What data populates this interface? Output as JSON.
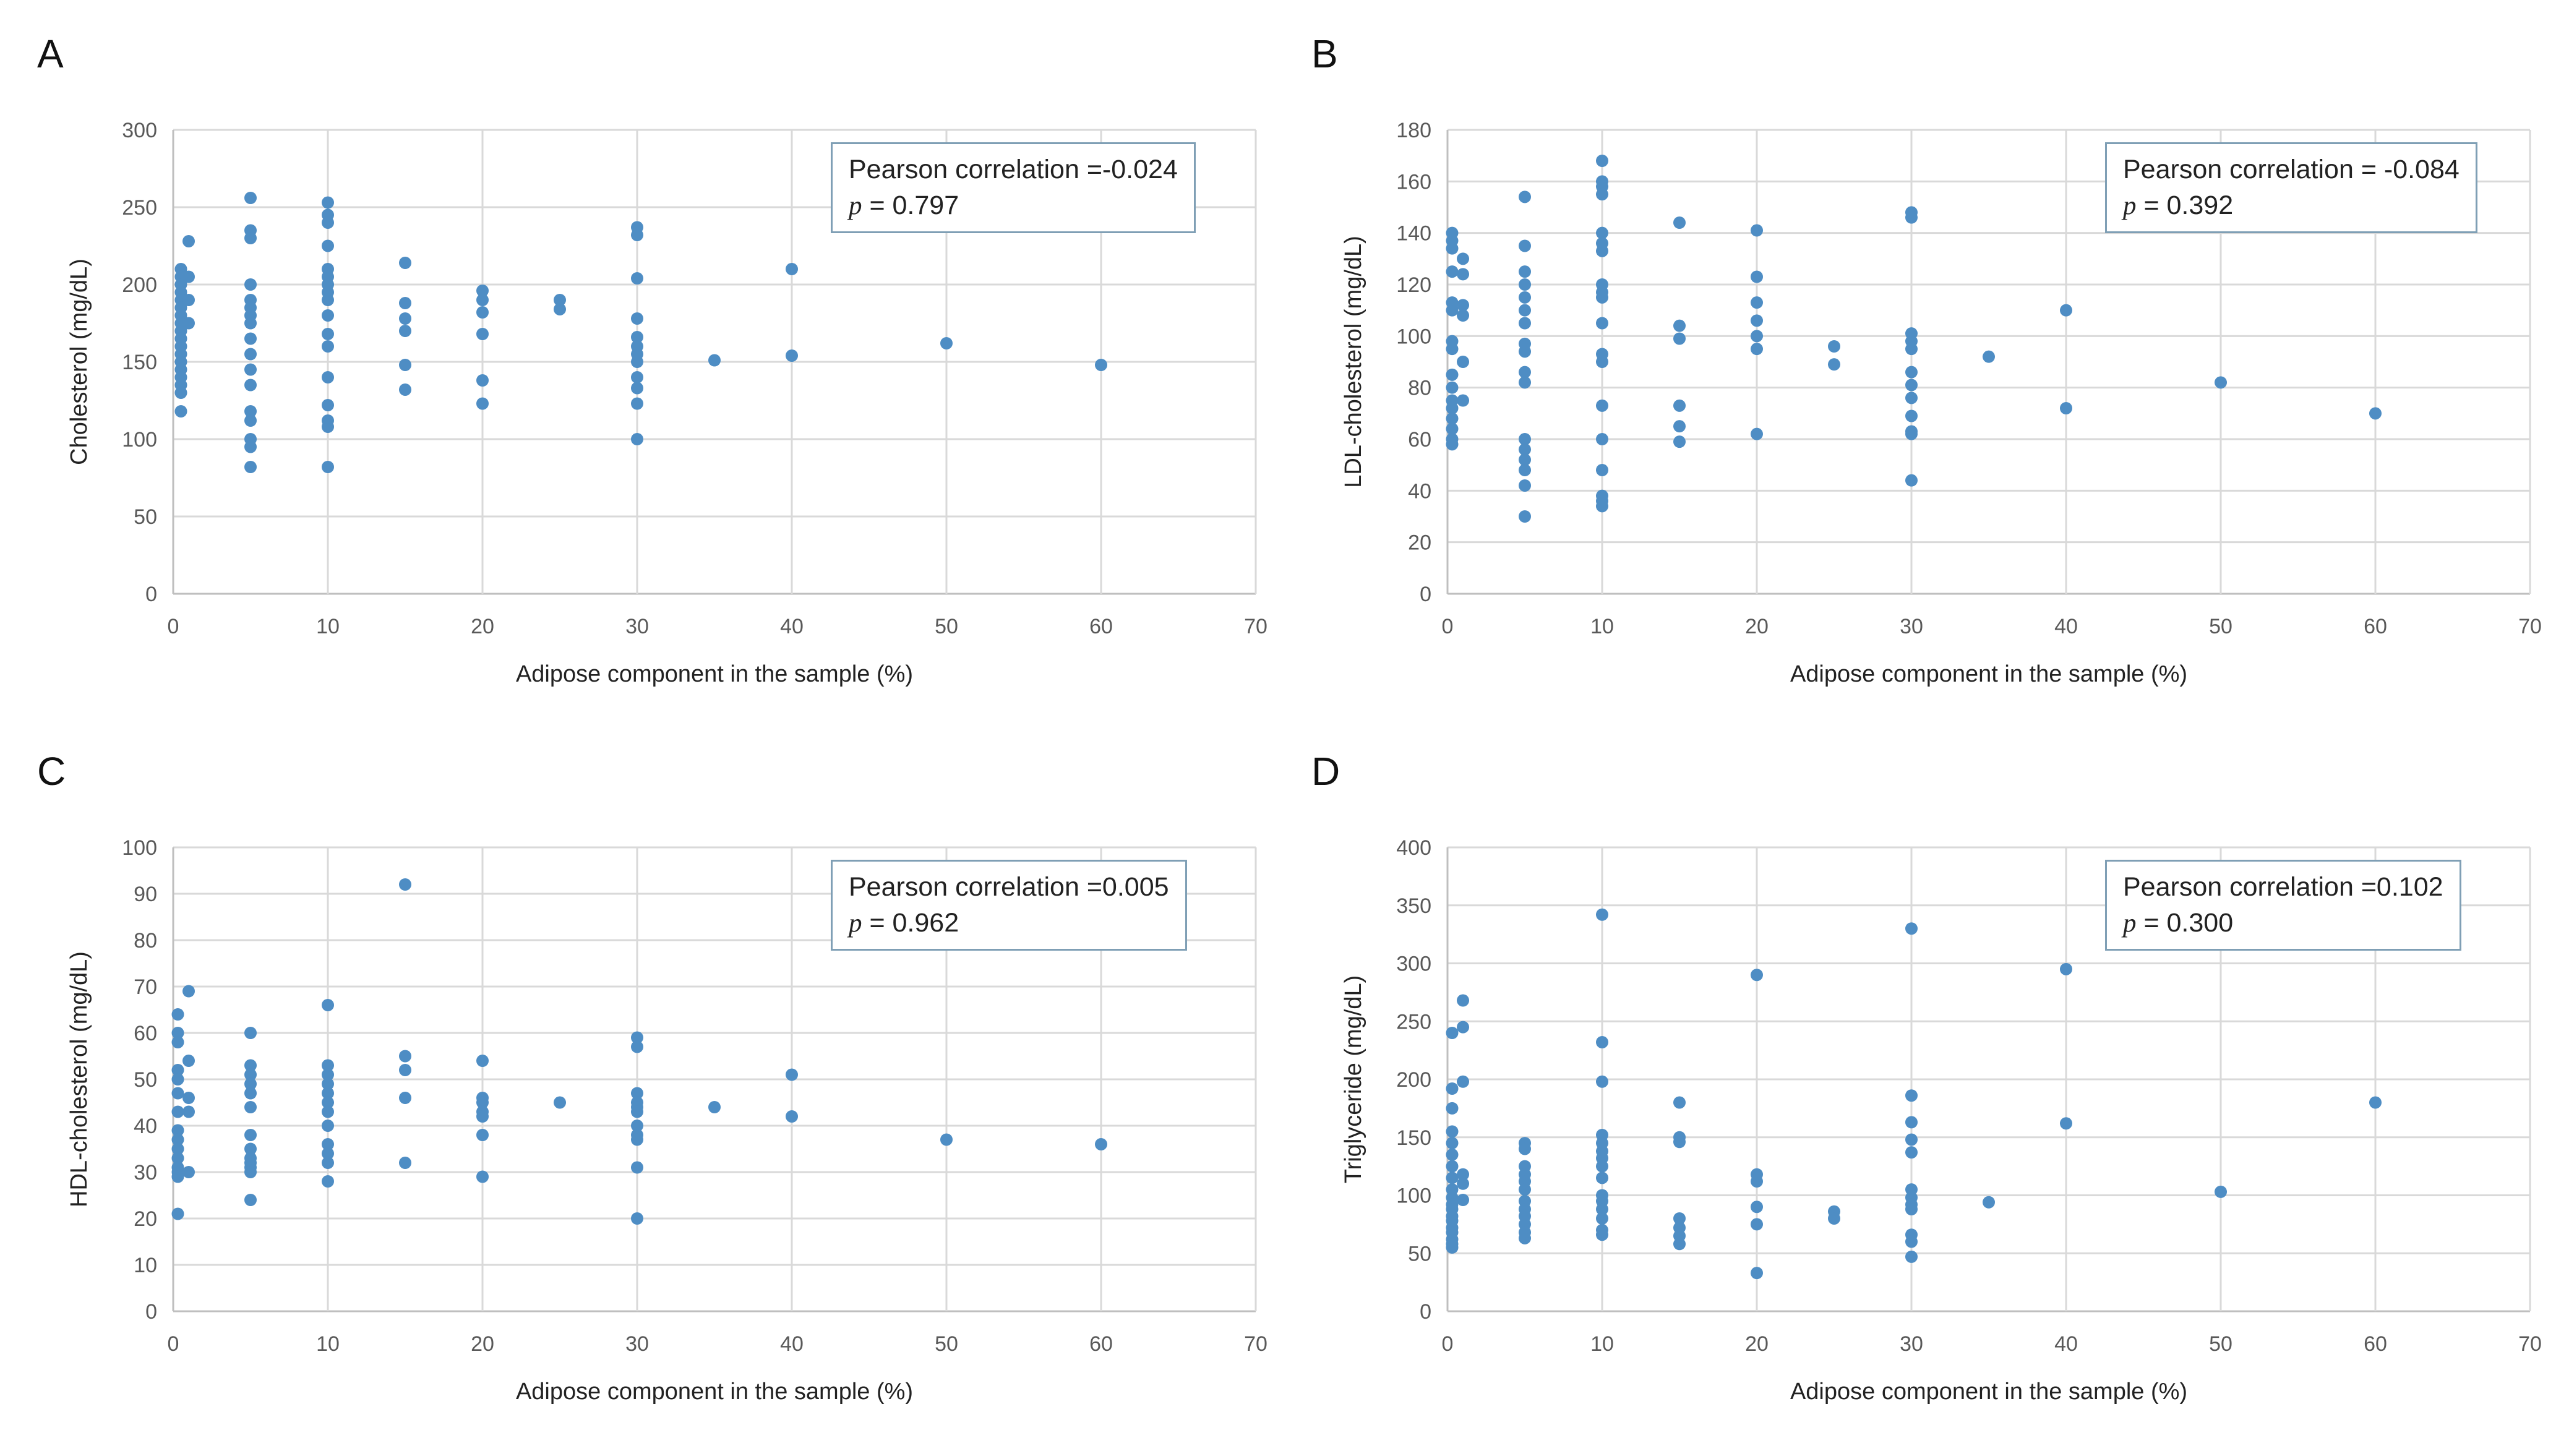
{
  "chart_data": [
    {
      "panel": "A",
      "type": "scatter",
      "xlabel": "Adipose component in the sample (%)",
      "ylabel": "Cholesterol (mg/dL)",
      "xlim": [
        0,
        70
      ],
      "xticks": [
        0,
        10,
        20,
        30,
        40,
        50,
        60,
        70
      ],
      "ylim": [
        0,
        300
      ],
      "yticks": [
        0,
        50,
        100,
        150,
        200,
        250,
        300
      ],
      "annotation": {
        "corr": "Pearson correlation =-0.024",
        "p_symbol": "p",
        "p_value": " = 0.797"
      },
      "points": [
        [
          0.5,
          210
        ],
        [
          0.5,
          205
        ],
        [
          0.5,
          200
        ],
        [
          0.5,
          195
        ],
        [
          0.5,
          190
        ],
        [
          0.5,
          185
        ],
        [
          0.5,
          180
        ],
        [
          0.5,
          175
        ],
        [
          0.5,
          170
        ],
        [
          0.5,
          165
        ],
        [
          0.5,
          160
        ],
        [
          0.5,
          155
        ],
        [
          0.5,
          150
        ],
        [
          0.5,
          145
        ],
        [
          0.5,
          140
        ],
        [
          0.5,
          135
        ],
        [
          0.5,
          130
        ],
        [
          0.5,
          118
        ],
        [
          1,
          228
        ],
        [
          1,
          205
        ],
        [
          1,
          190
        ],
        [
          1,
          175
        ],
        [
          5,
          256
        ],
        [
          5,
          235
        ],
        [
          5,
          230
        ],
        [
          5,
          200
        ],
        [
          5,
          190
        ],
        [
          5,
          185
        ],
        [
          5,
          180
        ],
        [
          5,
          175
        ],
        [
          5,
          165
        ],
        [
          5,
          155
        ],
        [
          5,
          145
        ],
        [
          5,
          135
        ],
        [
          5,
          118
        ],
        [
          5,
          112
        ],
        [
          5,
          100
        ],
        [
          5,
          95
        ],
        [
          5,
          82
        ],
        [
          10,
          253
        ],
        [
          10,
          245
        ],
        [
          10,
          240
        ],
        [
          10,
          225
        ],
        [
          10,
          210
        ],
        [
          10,
          205
        ],
        [
          10,
          200
        ],
        [
          10,
          195
        ],
        [
          10,
          190
        ],
        [
          10,
          180
        ],
        [
          10,
          168
        ],
        [
          10,
          160
        ],
        [
          10,
          140
        ],
        [
          10,
          122
        ],
        [
          10,
          112
        ],
        [
          10,
          108
        ],
        [
          10,
          82
        ],
        [
          15,
          214
        ],
        [
          15,
          188
        ],
        [
          15,
          178
        ],
        [
          15,
          170
        ],
        [
          15,
          148
        ],
        [
          15,
          132
        ],
        [
          20,
          196
        ],
        [
          20,
          190
        ],
        [
          20,
          182
        ],
        [
          20,
          168
        ],
        [
          20,
          138
        ],
        [
          20,
          123
        ],
        [
          25,
          190
        ],
        [
          25,
          184
        ],
        [
          30,
          237
        ],
        [
          30,
          232
        ],
        [
          30,
          204
        ],
        [
          30,
          178
        ],
        [
          30,
          166
        ],
        [
          30,
          160
        ],
        [
          30,
          155
        ],
        [
          30,
          150
        ],
        [
          30,
          140
        ],
        [
          30,
          133
        ],
        [
          30,
          123
        ],
        [
          30,
          100
        ],
        [
          35,
          151
        ],
        [
          40,
          210
        ],
        [
          40,
          154
        ],
        [
          50,
          162
        ],
        [
          60,
          148
        ]
      ]
    },
    {
      "panel": "B",
      "type": "scatter",
      "xlabel": "Adipose component in the sample (%)",
      "ylabel": "LDL-cholesterol (mg/dL)",
      "xlim": [
        0,
        70
      ],
      "xticks": [
        0,
        10,
        20,
        30,
        40,
        50,
        60,
        70
      ],
      "ylim": [
        0,
        180
      ],
      "yticks": [
        0,
        20,
        40,
        60,
        80,
        100,
        120,
        140,
        160,
        180
      ],
      "annotation": {
        "corr": "Pearson correlation = -0.084",
        "p_symbol": "p",
        "p_value": " = 0.392"
      },
      "points": [
        [
          0.3,
          140
        ],
        [
          0.3,
          137
        ],
        [
          0.3,
          134
        ],
        [
          0.3,
          125
        ],
        [
          0.3,
          113
        ],
        [
          0.3,
          110
        ],
        [
          0.3,
          98
        ],
        [
          0.3,
          95
        ],
        [
          0.3,
          85
        ],
        [
          0.3,
          80
        ],
        [
          0.3,
          75
        ],
        [
          0.3,
          72
        ],
        [
          0.3,
          68
        ],
        [
          0.3,
          64
        ],
        [
          0.3,
          60
        ],
        [
          0.3,
          58
        ],
        [
          1,
          130
        ],
        [
          1,
          124
        ],
        [
          1,
          112
        ],
        [
          1,
          108
        ],
        [
          1,
          90
        ],
        [
          1,
          75
        ],
        [
          5,
          154
        ],
        [
          5,
          135
        ],
        [
          5,
          125
        ],
        [
          5,
          120
        ],
        [
          5,
          115
        ],
        [
          5,
          110
        ],
        [
          5,
          105
        ],
        [
          5,
          97
        ],
        [
          5,
          94
        ],
        [
          5,
          86
        ],
        [
          5,
          82
        ],
        [
          5,
          60
        ],
        [
          5,
          56
        ],
        [
          5,
          52
        ],
        [
          5,
          48
        ],
        [
          5,
          42
        ],
        [
          5,
          30
        ],
        [
          10,
          168
        ],
        [
          10,
          160
        ],
        [
          10,
          158
        ],
        [
          10,
          155
        ],
        [
          10,
          140
        ],
        [
          10,
          136
        ],
        [
          10,
          133
        ],
        [
          10,
          120
        ],
        [
          10,
          117
        ],
        [
          10,
          115
        ],
        [
          10,
          105
        ],
        [
          10,
          93
        ],
        [
          10,
          90
        ],
        [
          10,
          73
        ],
        [
          10,
          60
        ],
        [
          10,
          48
        ],
        [
          10,
          38
        ],
        [
          10,
          36
        ],
        [
          10,
          34
        ],
        [
          15,
          144
        ],
        [
          15,
          104
        ],
        [
          15,
          99
        ],
        [
          15,
          73
        ],
        [
          15,
          65
        ],
        [
          15,
          59
        ],
        [
          20,
          141
        ],
        [
          20,
          123
        ],
        [
          20,
          113
        ],
        [
          20,
          106
        ],
        [
          20,
          100
        ],
        [
          20,
          95
        ],
        [
          20,
          62
        ],
        [
          25,
          96
        ],
        [
          25,
          89
        ],
        [
          30,
          148
        ],
        [
          30,
          146
        ],
        [
          30,
          101
        ],
        [
          30,
          98
        ],
        [
          30,
          95
        ],
        [
          30,
          86
        ],
        [
          30,
          81
        ],
        [
          30,
          76
        ],
        [
          30,
          69
        ],
        [
          30,
          63
        ],
        [
          30,
          62
        ],
        [
          30,
          44
        ],
        [
          35,
          92
        ],
        [
          40,
          110
        ],
        [
          40,
          72
        ],
        [
          50,
          82
        ],
        [
          60,
          70
        ]
      ]
    },
    {
      "panel": "C",
      "type": "scatter",
      "xlabel": "Adipose component in the sample (%)",
      "ylabel": "HDL-cholesterol (mg/dL)",
      "xlim": [
        0,
        70
      ],
      "xticks": [
        0,
        10,
        20,
        30,
        40,
        50,
        60,
        70
      ],
      "ylim": [
        0,
        100
      ],
      "yticks": [
        0,
        10,
        20,
        30,
        40,
        50,
        60,
        70,
        80,
        90,
        100
      ],
      "annotation": {
        "corr": "Pearson correlation =0.005",
        "p_symbol": "p",
        "p_value": " = 0.962"
      },
      "points": [
        [
          0.3,
          64
        ],
        [
          0.3,
          60
        ],
        [
          0.3,
          58
        ],
        [
          0.3,
          52
        ],
        [
          0.3,
          50
        ],
        [
          0.3,
          47
        ],
        [
          0.3,
          43
        ],
        [
          0.3,
          39
        ],
        [
          0.3,
          37
        ],
        [
          0.3,
          35
        ],
        [
          0.3,
          33
        ],
        [
          0.3,
          31
        ],
        [
          0.3,
          30
        ],
        [
          0.3,
          29
        ],
        [
          0.3,
          21
        ],
        [
          1,
          69
        ],
        [
          1,
          54
        ],
        [
          1,
          46
        ],
        [
          1,
          43
        ],
        [
          1,
          30
        ],
        [
          5,
          60
        ],
        [
          5,
          53
        ],
        [
          5,
          51
        ],
        [
          5,
          49
        ],
        [
          5,
          47
        ],
        [
          5,
          44
        ],
        [
          5,
          38
        ],
        [
          5,
          35
        ],
        [
          5,
          33
        ],
        [
          5,
          32
        ],
        [
          5,
          31
        ],
        [
          5,
          30
        ],
        [
          5,
          24
        ],
        [
          10,
          66
        ],
        [
          10,
          53
        ],
        [
          10,
          51
        ],
        [
          10,
          49
        ],
        [
          10,
          47
        ],
        [
          10,
          45
        ],
        [
          10,
          43
        ],
        [
          10,
          40
        ],
        [
          10,
          36
        ],
        [
          10,
          34
        ],
        [
          10,
          32
        ],
        [
          10,
          28
        ],
        [
          15,
          92
        ],
        [
          15,
          55
        ],
        [
          15,
          52
        ],
        [
          15,
          46
        ],
        [
          15,
          32
        ],
        [
          20,
          54
        ],
        [
          20,
          46
        ],
        [
          20,
          45
        ],
        [
          20,
          43
        ],
        [
          20,
          42
        ],
        [
          20,
          38
        ],
        [
          20,
          29
        ],
        [
          25,
          45
        ],
        [
          30,
          59
        ],
        [
          30,
          57
        ],
        [
          30,
          47
        ],
        [
          30,
          45
        ],
        [
          30,
          44
        ],
        [
          30,
          43
        ],
        [
          30,
          40
        ],
        [
          30,
          38
        ],
        [
          30,
          37
        ],
        [
          30,
          31
        ],
        [
          30,
          20
        ],
        [
          35,
          44
        ],
        [
          40,
          51
        ],
        [
          40,
          42
        ],
        [
          50,
          37
        ],
        [
          60,
          36
        ]
      ]
    },
    {
      "panel": "D",
      "type": "scatter",
      "xlabel": "Adipose component in the sample (%)",
      "ylabel": "Triglyceride (mg/dL)",
      "xlim": [
        0,
        70
      ],
      "xticks": [
        0,
        10,
        20,
        30,
        40,
        50,
        60,
        70
      ],
      "ylim": [
        0,
        400
      ],
      "yticks": [
        0,
        50,
        100,
        150,
        200,
        250,
        300,
        350,
        400
      ],
      "annotation": {
        "corr": "Pearson correlation =0.102",
        "p_symbol": "p",
        "p_value": " = 0.300"
      },
      "points": [
        [
          0.3,
          240
        ],
        [
          0.3,
          192
        ],
        [
          0.3,
          175
        ],
        [
          0.3,
          155
        ],
        [
          0.3,
          145
        ],
        [
          0.3,
          135
        ],
        [
          0.3,
          125
        ],
        [
          0.3,
          115
        ],
        [
          0.3,
          105
        ],
        [
          0.3,
          98
        ],
        [
          0.3,
          92
        ],
        [
          0.3,
          88
        ],
        [
          0.3,
          82
        ],
        [
          0.3,
          78
        ],
        [
          0.3,
          72
        ],
        [
          0.3,
          68
        ],
        [
          0.3,
          62
        ],
        [
          0.3,
          58
        ],
        [
          0.3,
          55
        ],
        [
          1,
          268
        ],
        [
          1,
          245
        ],
        [
          1,
          198
        ],
        [
          1,
          118
        ],
        [
          1,
          110
        ],
        [
          1,
          96
        ],
        [
          5,
          145
        ],
        [
          5,
          140
        ],
        [
          5,
          125
        ],
        [
          5,
          118
        ],
        [
          5,
          112
        ],
        [
          5,
          105
        ],
        [
          5,
          95
        ],
        [
          5,
          88
        ],
        [
          5,
          82
        ],
        [
          5,
          75
        ],
        [
          5,
          68
        ],
        [
          5,
          63
        ],
        [
          10,
          342
        ],
        [
          10,
          232
        ],
        [
          10,
          198
        ],
        [
          10,
          152
        ],
        [
          10,
          145
        ],
        [
          10,
          138
        ],
        [
          10,
          132
        ],
        [
          10,
          125
        ],
        [
          10,
          115
        ],
        [
          10,
          100
        ],
        [
          10,
          95
        ],
        [
          10,
          88
        ],
        [
          10,
          80
        ],
        [
          10,
          70
        ],
        [
          10,
          66
        ],
        [
          15,
          180
        ],
        [
          15,
          150
        ],
        [
          15,
          146
        ],
        [
          15,
          80
        ],
        [
          15,
          72
        ],
        [
          15,
          65
        ],
        [
          15,
          58
        ],
        [
          20,
          290
        ],
        [
          20,
          118
        ],
        [
          20,
          112
        ],
        [
          20,
          90
        ],
        [
          20,
          75
        ],
        [
          20,
          33
        ],
        [
          25,
          86
        ],
        [
          25,
          80
        ],
        [
          30,
          330
        ],
        [
          30,
          186
        ],
        [
          30,
          163
        ],
        [
          30,
          148
        ],
        [
          30,
          137
        ],
        [
          30,
          105
        ],
        [
          30,
          98
        ],
        [
          30,
          92
        ],
        [
          30,
          88
        ],
        [
          30,
          66
        ],
        [
          30,
          60
        ],
        [
          30,
          47
        ],
        [
          35,
          94
        ],
        [
          40,
          295
        ],
        [
          40,
          162
        ],
        [
          50,
          103
        ],
        [
          60,
          180
        ]
      ]
    }
  ]
}
